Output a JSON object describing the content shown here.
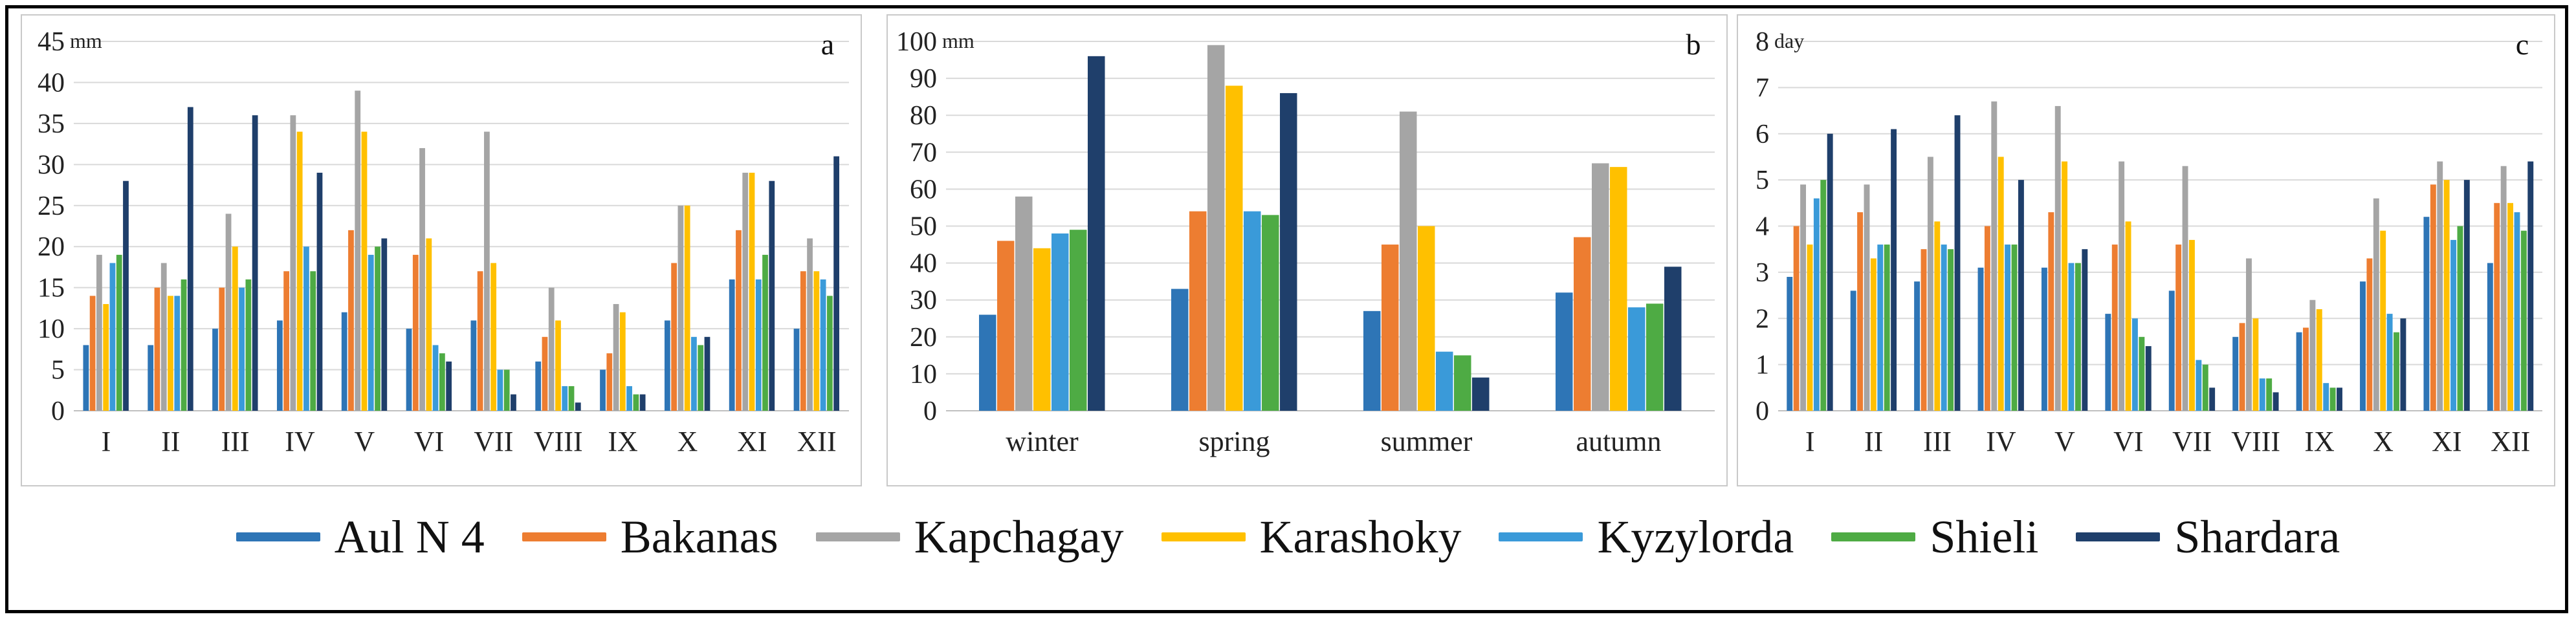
{
  "legend": [
    {
      "name": "Aul N 4",
      "color": "#2e75b6"
    },
    {
      "name": "Bakanas",
      "color": "#ed7d31"
    },
    {
      "name": "Kapchagay",
      "color": "#a5a5a5"
    },
    {
      "name": "Karashoky",
      "color": "#ffc000"
    },
    {
      "name": "Kyzylorda",
      "color": "#3a9ad9"
    },
    {
      "name": "Shieli",
      "color": "#4eab44"
    },
    {
      "name": "Shardara",
      "color": "#1f3f6b"
    }
  ],
  "chart_data": [
    {
      "id": "a",
      "type": "bar",
      "panel_letter": "a",
      "unit": "mm",
      "ylim": [
        0,
        45
      ],
      "yticks": [
        0,
        5,
        10,
        15,
        20,
        25,
        30,
        35,
        40,
        45
      ],
      "grid": true,
      "categories": [
        "I",
        "II",
        "III",
        "IV",
        "V",
        "VI",
        "VII",
        "VIII",
        "IX",
        "X",
        "XI",
        "XII"
      ],
      "series": [
        {
          "name": "Aul N 4",
          "values": [
            8,
            8,
            10,
            11,
            12,
            10,
            11,
            6,
            5,
            11,
            16,
            10
          ]
        },
        {
          "name": "Bakanas",
          "values": [
            14,
            15,
            15,
            17,
            22,
            19,
            17,
            9,
            7,
            18,
            22,
            17
          ]
        },
        {
          "name": "Kapchagay",
          "values": [
            19,
            18,
            24,
            36,
            39,
            32,
            34,
            15,
            13,
            25,
            29,
            21
          ]
        },
        {
          "name": "Karashoky",
          "values": [
            13,
            14,
            20,
            34,
            34,
            21,
            18,
            11,
            12,
            25,
            29,
            17
          ]
        },
        {
          "name": "Kyzylorda",
          "values": [
            18,
            14,
            15,
            20,
            19,
            8,
            5,
            3,
            3,
            9,
            16,
            16
          ]
        },
        {
          "name": "Shieli",
          "values": [
            19,
            16,
            16,
            17,
            20,
            7,
            5,
            3,
            2,
            8,
            19,
            14
          ]
        },
        {
          "name": "Shardara",
          "values": [
            28,
            37,
            36,
            29,
            21,
            6,
            2,
            1,
            2,
            9,
            28,
            31
          ]
        }
      ]
    },
    {
      "id": "b",
      "type": "bar",
      "panel_letter": "b",
      "unit": "mm",
      "ylim": [
        0,
        100
      ],
      "yticks": [
        0,
        10,
        20,
        30,
        40,
        50,
        60,
        70,
        80,
        90,
        100
      ],
      "grid": true,
      "categories": [
        "winter",
        "spring",
        "summer",
        "autumn"
      ],
      "series": [
        {
          "name": "Aul N 4",
          "values": [
            26,
            33,
            27,
            32
          ]
        },
        {
          "name": "Bakanas",
          "values": [
            46,
            54,
            45,
            47
          ]
        },
        {
          "name": "Kapchagay",
          "values": [
            58,
            99,
            81,
            67
          ]
        },
        {
          "name": "Karashoky",
          "values": [
            44,
            88,
            50,
            66
          ]
        },
        {
          "name": "Kyzylorda",
          "values": [
            48,
            54,
            16,
            28
          ]
        },
        {
          "name": "Shieli",
          "values": [
            49,
            53,
            15,
            29
          ]
        },
        {
          "name": "Shardara",
          "values": [
            96,
            86,
            9,
            39
          ]
        }
      ]
    },
    {
      "id": "c",
      "type": "bar",
      "panel_letter": "c",
      "unit": "day",
      "ylim": [
        0,
        8
      ],
      "yticks": [
        0,
        1,
        2,
        3,
        4,
        5,
        6,
        7,
        8
      ],
      "grid": true,
      "categories": [
        "I",
        "II",
        "III",
        "IV",
        "V",
        "VI",
        "VII",
        "VIII",
        "IX",
        "X",
        "XI",
        "XII"
      ],
      "series": [
        {
          "name": "Aul N 4",
          "values": [
            2.9,
            2.6,
            2.8,
            3.1,
            3.1,
            2.1,
            2.6,
            1.6,
            1.7,
            2.8,
            4.2,
            3.2
          ]
        },
        {
          "name": "Bakanas",
          "values": [
            4.0,
            4.3,
            3.5,
            4.0,
            4.3,
            3.6,
            3.6,
            1.9,
            1.8,
            3.3,
            4.9,
            4.5
          ]
        },
        {
          "name": "Kapchagay",
          "values": [
            4.9,
            4.9,
            5.5,
            6.7,
            6.6,
            5.4,
            5.3,
            3.3,
            2.4,
            4.6,
            5.4,
            5.3
          ]
        },
        {
          "name": "Karashoky",
          "values": [
            3.6,
            3.3,
            4.1,
            5.5,
            5.4,
            4.1,
            3.7,
            2.0,
            2.2,
            3.9,
            5.0,
            4.5
          ]
        },
        {
          "name": "Kyzylorda",
          "values": [
            4.6,
            3.6,
            3.6,
            3.6,
            3.2,
            2.0,
            1.1,
            0.7,
            0.6,
            2.1,
            3.7,
            4.3
          ]
        },
        {
          "name": "Shieli",
          "values": [
            5.0,
            3.6,
            3.5,
            3.6,
            3.2,
            1.6,
            1.0,
            0.7,
            0.5,
            1.7,
            4.0,
            3.9
          ]
        },
        {
          "name": "Shardara",
          "values": [
            6.0,
            6.1,
            6.4,
            5.0,
            3.5,
            1.4,
            0.5,
            0.4,
            0.5,
            2.0,
            5.0,
            5.4
          ]
        }
      ]
    }
  ]
}
